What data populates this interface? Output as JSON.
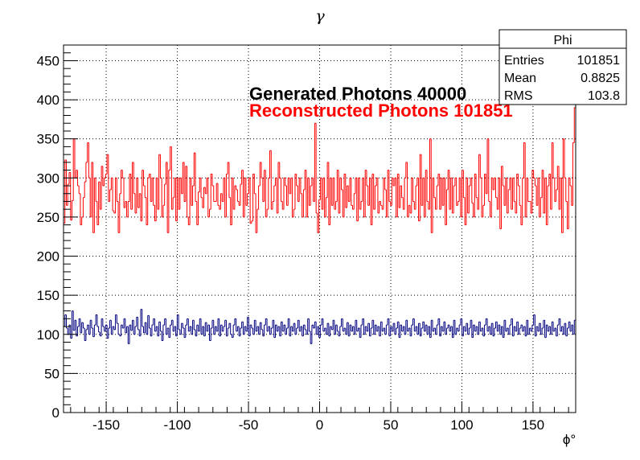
{
  "chart_data": {
    "type": "histogram",
    "title": "γ",
    "xlabel": "ϕ°",
    "ylabel": "",
    "xlim": [
      -180,
      180
    ],
    "ylim": [
      0,
      470
    ],
    "xticks": [
      -150,
      -100,
      -50,
      0,
      50,
      100,
      150
    ],
    "yticks": [
      0,
      50,
      100,
      150,
      200,
      250,
      300,
      350,
      400,
      450
    ],
    "grid": true,
    "nbins": 360,
    "series": [
      {
        "name": "Reconstructed Photons 101851",
        "color": "#ff0000",
        "values": [
          242,
          323,
          265,
          292,
          307,
          246,
          271,
          350,
          300,
          310,
          290,
          280,
          240,
          250,
          275,
          295,
          320,
          345,
          300,
          250,
          320,
          230,
          300,
          270,
          240,
          295,
          260,
          315,
          290,
          300,
          305,
          330,
          270,
          285,
          300,
          258,
          255,
          300,
          270,
          230,
          280,
          310,
          300,
          262,
          270,
          250,
          270,
          305,
          260,
          320,
          280,
          255,
          300,
          262,
          280,
          245,
          310,
          290,
          275,
          240,
          300,
          305,
          270,
          300,
          265,
          245,
          300,
          260,
          330,
          300,
          250,
          265,
          292,
          320,
          230,
          310,
          340,
          260,
          275,
          300,
          245,
          300,
          260,
          300,
          280,
          320,
          270,
          315,
          250,
          240,
          300,
          265,
          290,
          332,
          270,
          240,
          282,
          300,
          275,
          262,
          288,
          280,
          300,
          250,
          260,
          305,
          290,
          270,
          270,
          293,
          265,
          260,
          280,
          270,
          300,
          250,
          305,
          320,
          275,
          240,
          300,
          260,
          290,
          285,
          270,
          265,
          292,
          310,
          250,
          300,
          265,
          280,
          300,
          242,
          245,
          305,
          280,
          230,
          260,
          290,
          320,
          300,
          270,
          310,
          250,
          260,
          300,
          335,
          260,
          270,
          290,
          300,
          255,
          320,
          300,
          270,
          260,
          300,
          290,
          265,
          300,
          280,
          300,
          250,
          260,
          305,
          290,
          270,
          300,
          280,
          250,
          285,
          310,
          250,
          300,
          265,
          290,
          300,
          270,
          370,
          255,
          230,
          272,
          300,
          260,
          300,
          250,
          275,
          320,
          240,
          300,
          265,
          300,
          260,
          270,
          310,
          255,
          300,
          285,
          250,
          305,
          262,
          290,
          270,
          300,
          265,
          260,
          280,
          300,
          245,
          300,
          260,
          270,
          300,
          250,
          310,
          290,
          265,
          300,
          240,
          305,
          260,
          290,
          300,
          255,
          270,
          265,
          260,
          300,
          285,
          250,
          310,
          270,
          265,
          300,
          290,
          300,
          250,
          305,
          262,
          290,
          275,
          260,
          300,
          320,
          250,
          265,
          255,
          300,
          270,
          260,
          290,
          300,
          245,
          330,
          265,
          300,
          250,
          310,
          270,
          260,
          350,
          230,
          300,
          275,
          260,
          290,
          305,
          260,
          300,
          265,
          300,
          240,
          285,
          310,
          260,
          300,
          255,
          290,
          300,
          265,
          270,
          300,
          250,
          310,
          275,
          240,
          300,
          255,
          290,
          300,
          268,
          250,
          305,
          275,
          260,
          330,
          300,
          250,
          265,
          305,
          280,
          350,
          270,
          250,
          300,
          285,
          300,
          275,
          260,
          300,
          235,
          315,
          290,
          265,
          300,
          255,
          285,
          300,
          260,
          300,
          270,
          255,
          305,
          290,
          265,
          240,
          300,
          345,
          250,
          300,
          270,
          270,
          255,
          310,
          300,
          290,
          265,
          300,
          250,
          275,
          310,
          255,
          300,
          240,
          290,
          305,
          260,
          345,
          300,
          270,
          285,
          315,
          260,
          300,
          230,
          350,
          300,
          270,
          235,
          300,
          290,
          265,
          345,
          390
        ]
      },
      {
        "name": "Generated Photons 40000",
        "color": "#00007f",
        "values": [
          110,
          125,
          108,
          100,
          112,
          95,
          130,
          105,
          118,
          98,
          110,
          120,
          102,
          115,
          108,
          92,
          106,
          112,
          100,
          118,
          108,
          97,
          112,
          125,
          110,
          103,
          98,
          120,
          110,
          104,
          112,
          95,
          108,
          118,
          100,
          110,
          106,
          125,
          114,
          100,
          98,
          112,
          108,
          120,
          102,
          110,
          88,
          112,
          105,
          118,
          100,
          110,
          122,
          106,
          98,
          132,
          110,
          102,
          115,
          100,
          124,
          108,
          98,
          112,
          120,
          104,
          110,
          98,
          116,
          104,
          92,
          112,
          120,
          100,
          108,
          96,
          112,
          118,
          104,
          110,
          98,
          125,
          106,
          100,
          114,
          108,
          96,
          112,
          120,
          104,
          110,
          100,
          118,
          106,
          98,
          112,
          104,
          120,
          100,
          110,
          98,
          115,
          104,
          112,
          92,
          108,
          118,
          100,
          110,
          104,
          120,
          98,
          112,
          104,
          110,
          118,
          98,
          108,
          114,
          100,
          96,
          112,
          120,
          104,
          110,
          98,
          108,
          116,
          100,
          110,
          104,
          122,
          98,
          112,
          108,
          100,
          118,
          104,
          110,
          100,
          115,
          106,
          98,
          112,
          120,
          104,
          110,
          100,
          108,
          118,
          96,
          112,
          104,
          110,
          98,
          116,
          104,
          112,
          100,
          108,
          120,
          98,
          110,
          104,
          114,
          100,
          108,
          118,
          104,
          110,
          98,
          112,
          106,
          100,
          120,
          104,
          88,
          112,
          108,
          116,
          100,
          110,
          96,
          112,
          120,
          104,
          108,
          100,
          114,
          98,
          110,
          106,
          118,
          100,
          112,
          104,
          98,
          110,
          120,
          104,
          108,
          100,
          115,
          98,
          112,
          104,
          110,
          100,
          118,
          104,
          108,
          96,
          112,
          120,
          100,
          110,
          104,
          114,
          98,
          108,
          118,
          100,
          112,
          104,
          110,
          98,
          116,
          104,
          108,
          100,
          112,
          120,
          98,
          110,
          104,
          114,
          100,
          108,
          116,
          96,
          112,
          104,
          110,
          100,
          118,
          104,
          108,
          98,
          112,
          120,
          104,
          110,
          100,
          114,
          98,
          108,
          116,
          104,
          112,
          100,
          110,
          96,
          118,
          104,
          108,
          100,
          112,
          120,
          98,
          110,
          104,
          116,
          100,
          108,
          112,
          104,
          110,
          96,
          118,
          100,
          108,
          104,
          112,
          120,
          98,
          110,
          104,
          114,
          100,
          108,
          118,
          96,
          112,
          104,
          110,
          100,
          116,
          104,
          108,
          98,
          112,
          120,
          104,
          110,
          100,
          114,
          98,
          108,
          116,
          104,
          112,
          100,
          110,
          96,
          118,
          104,
          108,
          100,
          112,
          120,
          98,
          110,
          104,
          116,
          100,
          108,
          112,
          104,
          110,
          98,
          118,
          100,
          108,
          104,
          112,
          125,
          98,
          110,
          104,
          114,
          100,
          108,
          118,
          96,
          112,
          104,
          110,
          100,
          116,
          104,
          108,
          98,
          112,
          120,
          104,
          110,
          100,
          114,
          98,
          108,
          116,
          104,
          112,
          100,
          118
        ]
      }
    ],
    "annotations": [
      "Generated Photons 40000",
      "Reconstructed Photons 101851"
    ],
    "stats_box": {
      "title": "Phi",
      "rows": [
        {
          "label": "Entries",
          "value": "101851"
        },
        {
          "label": "Mean",
          "value": "0.8825"
        },
        {
          "label": "RMS",
          "value": "103.8"
        }
      ]
    }
  }
}
